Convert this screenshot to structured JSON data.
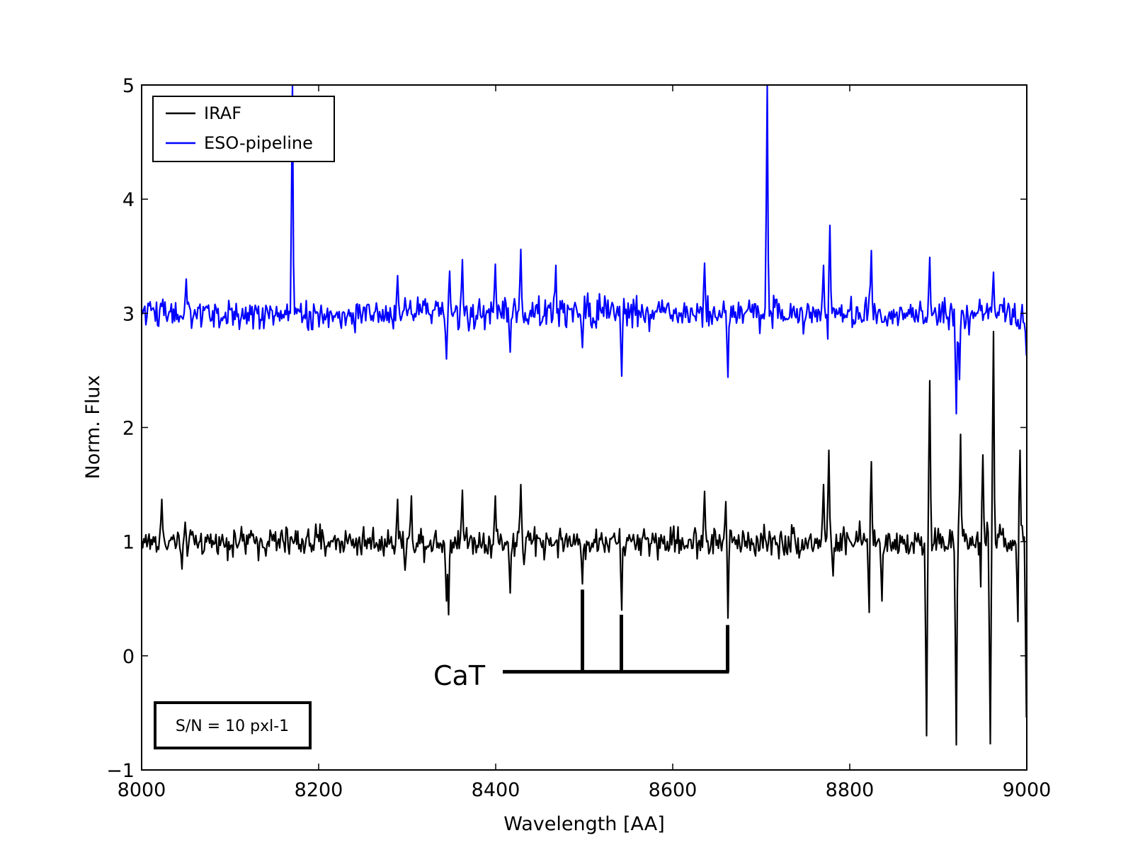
{
  "chart_data": {
    "type": "line",
    "xlabel": "Wavelength [AA]",
    "ylabel": "Norm. Flux",
    "xlim": [
      8000,
      9000
    ],
    "ylim": [
      -1,
      5
    ],
    "x_ticks": [
      "8000",
      "8200",
      "8400",
      "8600",
      "8800",
      "9000"
    ],
    "y_ticks": [
      "−1",
      "0",
      "1",
      "2",
      "3",
      "4",
      "5"
    ],
    "grid": false,
    "legend_position": "top-left",
    "series": [
      {
        "name": "IRAF",
        "color": "#000000",
        "baseline": 1.0,
        "noise": 0.07,
        "features": [
          {
            "x": 8023,
            "y": 1.37
          },
          {
            "x": 8045,
            "y": 0.76
          },
          {
            "x": 8289,
            "y": 1.37
          },
          {
            "x": 8298,
            "y": 0.75
          },
          {
            "x": 8305,
            "y": 1.4
          },
          {
            "x": 8345,
            "y": 0.48
          },
          {
            "x": 8347,
            "y": 0.36
          },
          {
            "x": 8362,
            "y": 1.45
          },
          {
            "x": 8400,
            "y": 1.4
          },
          {
            "x": 8416,
            "y": 0.55
          },
          {
            "x": 8429,
            "y": 1.5
          },
          {
            "x": 8432,
            "y": 0.8
          },
          {
            "x": 8498,
            "y": 0.63
          },
          {
            "x": 8542,
            "y": 0.4
          },
          {
            "x": 8636,
            "y": 1.44
          },
          {
            "x": 8662,
            "y": 0.33
          },
          {
            "x": 8660,
            "y": 1.35
          },
          {
            "x": 8771,
            "y": 1.5
          },
          {
            "x": 8777,
            "y": 1.8
          },
          {
            "x": 8781,
            "y": 0.7
          },
          {
            "x": 8822,
            "y": 0.38
          },
          {
            "x": 8824,
            "y": 1.7
          },
          {
            "x": 8836,
            "y": 0.48
          },
          {
            "x": 8887,
            "y": -0.7
          },
          {
            "x": 8890,
            "y": 2.41
          },
          {
            "x": 8921,
            "y": -0.78
          },
          {
            "x": 8925,
            "y": 1.94
          },
          {
            "x": 8949,
            "y": 0.12
          },
          {
            "x": 8951,
            "y": 1.76
          },
          {
            "x": 8959,
            "y": -0.77
          },
          {
            "x": 8962,
            "y": 2.84
          },
          {
            "x": 8990,
            "y": 0.3
          },
          {
            "x": 8993,
            "y": 1.8
          },
          {
            "x": 9000,
            "y": -0.54
          }
        ]
      },
      {
        "name": "ESO-pipeline",
        "color": "#0000ff",
        "baseline": 3.0,
        "noise": 0.07,
        "features": [
          {
            "x": 8050,
            "y": 3.3
          },
          {
            "x": 8170,
            "y": 5.0
          },
          {
            "x": 8289,
            "y": 3.33
          },
          {
            "x": 8345,
            "y": 2.6
          },
          {
            "x": 8348,
            "y": 3.37
          },
          {
            "x": 8362,
            "y": 3.47
          },
          {
            "x": 8400,
            "y": 3.43
          },
          {
            "x": 8416,
            "y": 2.66
          },
          {
            "x": 8429,
            "y": 3.56
          },
          {
            "x": 8468,
            "y": 3.42
          },
          {
            "x": 8498,
            "y": 2.7
          },
          {
            "x": 8542,
            "y": 2.45
          },
          {
            "x": 8636,
            "y": 3.44
          },
          {
            "x": 8662,
            "y": 2.44
          },
          {
            "x": 8707,
            "y": 5.0
          },
          {
            "x": 8771,
            "y": 3.42
          },
          {
            "x": 8777,
            "y": 2.5
          },
          {
            "x": 8778,
            "y": 3.77
          },
          {
            "x": 8824,
            "y": 3.55
          },
          {
            "x": 8890,
            "y": 3.49
          },
          {
            "x": 8921,
            "y": 2.12
          },
          {
            "x": 8924,
            "y": 2.42
          },
          {
            "x": 8962,
            "y": 3.36
          },
          {
            "x": 9000,
            "y": 2.63
          }
        ]
      }
    ],
    "annotations": {
      "cat_label": "CaT",
      "cat_lines": [
        8498,
        8542,
        8662
      ],
      "cat_line_tops": [
        0.58,
        0.36,
        0.27
      ],
      "cat_bar_y": -0.14,
      "cat_bar_start": 8408,
      "sn_note": "S/N = 10 pxl-1"
    }
  }
}
